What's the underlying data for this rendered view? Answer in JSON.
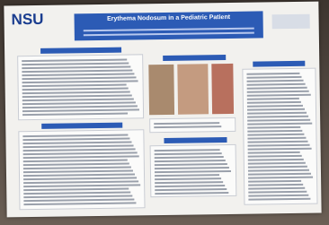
{
  "logo": "NSU",
  "title": "Erythema Nodosum in a Pediatric Patient"
}
